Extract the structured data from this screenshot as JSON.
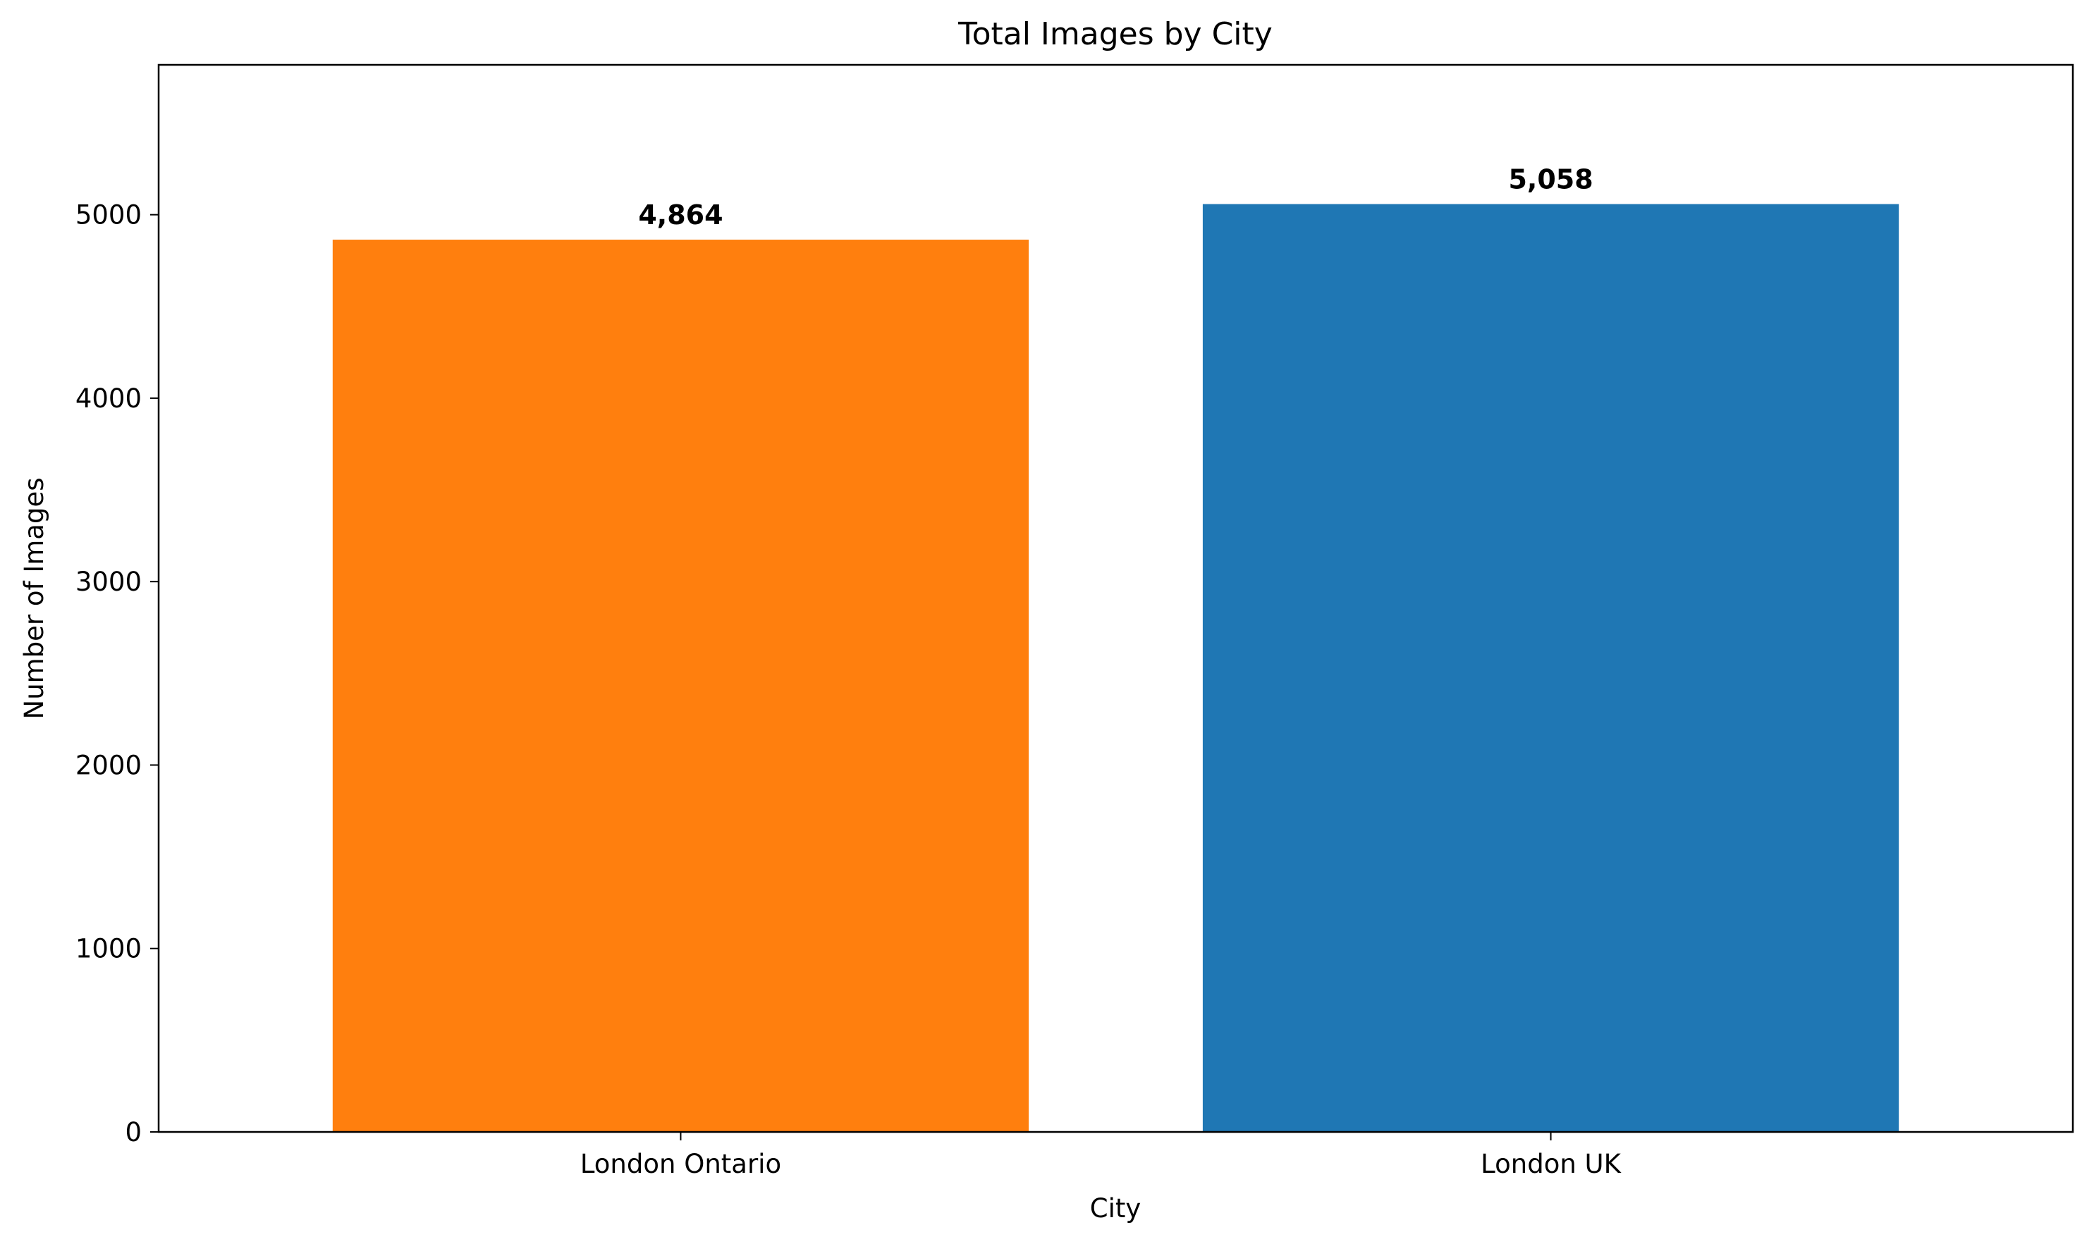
{
  "chart_data": {
    "type": "bar",
    "title": "Total Images by City",
    "xlabel": "City",
    "ylabel": "Number of Images",
    "categories": [
      "London Ontario",
      "London UK"
    ],
    "values": [
      4864,
      5058
    ],
    "value_labels": [
      "4,864",
      "5,058"
    ],
    "colors": [
      "#ff7f0e",
      "#1f77b4"
    ],
    "ylim": [
      0,
      5817
    ],
    "yticks": [
      0,
      1000,
      2000,
      3000,
      4000,
      5000
    ],
    "ytick_labels": [
      "0",
      "1000",
      "2000",
      "3000",
      "4000",
      "5000"
    ],
    "grid": false,
    "legend": false
  }
}
